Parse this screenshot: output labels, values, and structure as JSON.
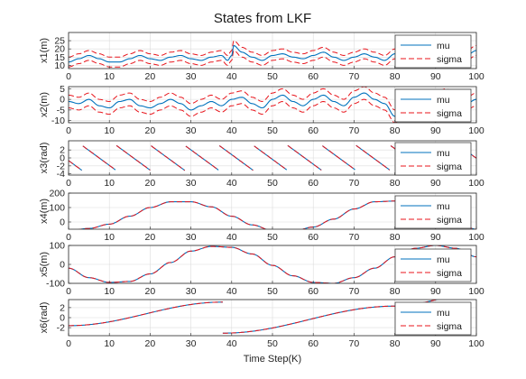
{
  "title": "States from LKF",
  "colors": {
    "mu": "#0072bd",
    "sigma": "#e8141b"
  },
  "chart_data": [
    {
      "type": "line",
      "ylabel": "x1(m)",
      "xlim": [
        0,
        100
      ],
      "ylim": [
        8,
        30
      ],
      "yticks": [
        10,
        15,
        20,
        25
      ],
      "xticks": [
        0,
        10,
        20,
        30,
        40,
        50,
        60,
        70,
        80,
        90,
        100
      ],
      "grid": true,
      "legend_position": "right",
      "series": [
        {
          "name": "mu"
        },
        {
          "name": "sigma"
        }
      ],
      "x": [
        0,
        2.5,
        5,
        7.5,
        10,
        12.5,
        15,
        17.5,
        20,
        22.5,
        25,
        27.5,
        30,
        32.5,
        35,
        37.5,
        39,
        40,
        40.5,
        42.5,
        45,
        47.5,
        50,
        52.5,
        55,
        57.5,
        60,
        62.5,
        65,
        67.5,
        70,
        72.5,
        75,
        77.5,
        80,
        82.5,
        85,
        87.5,
        90,
        92.5,
        95,
        97.5,
        100
      ],
      "mu": [
        12,
        14,
        16,
        14,
        12,
        12,
        14,
        16,
        14,
        13,
        15,
        16,
        14,
        13,
        15,
        16,
        13,
        16,
        22,
        18,
        15,
        13,
        16,
        17,
        15,
        14,
        16,
        18,
        15,
        13,
        15,
        17,
        15,
        13,
        17,
        16,
        14,
        13,
        16,
        19,
        17,
        16,
        19
      ],
      "sigma_band": 3
    },
    {
      "type": "line",
      "ylabel": "x2(m)",
      "xlim": [
        0,
        100
      ],
      "ylim": [
        -11,
        6
      ],
      "yticks": [
        -10,
        -5,
        0,
        5
      ],
      "xticks": [
        0,
        10,
        20,
        30,
        40,
        50,
        60,
        70,
        80,
        90,
        100
      ],
      "grid": true,
      "legend_position": "right",
      "series": [
        {
          "name": "mu"
        },
        {
          "name": "sigma"
        }
      ],
      "x": [
        0,
        2.5,
        5,
        7.5,
        10,
        12.5,
        15,
        17.5,
        20,
        22.5,
        25,
        27.5,
        30,
        32.5,
        35,
        37.5,
        40,
        42.5,
        45,
        47.5,
        50,
        52.5,
        55,
        57.5,
        60,
        62.5,
        65,
        67.5,
        70,
        72.5,
        75,
        77.5,
        80,
        82.5,
        85,
        87.5,
        90,
        92.5,
        95,
        97.5,
        100
      ],
      "mu": [
        -1,
        -2,
        0,
        -3,
        -4,
        -1,
        0,
        -3,
        -4,
        -2,
        0,
        -2,
        -5,
        -3,
        -1,
        -3,
        0,
        1,
        -2,
        -4,
        0,
        2,
        -1,
        -3,
        0,
        2,
        -1,
        -3,
        1,
        3,
        0,
        -2,
        -8,
        -4,
        -1,
        -3,
        0,
        2,
        -1,
        -2,
        0
      ],
      "sigma_band": 3
    },
    {
      "type": "line",
      "ylabel": "x3(rad)",
      "xlim": [
        0,
        100
      ],
      "ylim": [
        -4.3,
        4.3
      ],
      "yticks": [
        -4,
        -2,
        0,
        2
      ],
      "xticks": [
        0,
        10,
        20,
        30,
        40,
        50,
        60,
        70,
        80,
        90,
        100
      ],
      "grid": true,
      "legend_position": "right",
      "series": [
        {
          "name": "mu"
        },
        {
          "name": "sigma"
        }
      ],
      "sawtooth_period": 8.4,
      "sawtooth_start": 3.3,
      "max": 3.14,
      "min": -3.14
    },
    {
      "type": "line",
      "ylabel": "x4(m)",
      "xlim": [
        0,
        100
      ],
      "ylim": [
        -50,
        200
      ],
      "yticks": [
        0,
        100,
        200
      ],
      "xticks": [
        0,
        10,
        20,
        30,
        40,
        50,
        60,
        70,
        80,
        90,
        100
      ],
      "grid": true,
      "legend_position": "right",
      "series": [
        {
          "name": "mu"
        },
        {
          "name": "sigma"
        }
      ],
      "x": [
        0,
        5,
        10,
        15,
        20,
        25,
        30,
        35,
        40,
        45,
        50,
        55,
        60,
        65,
        70,
        75,
        80,
        85,
        90,
        95,
        100
      ],
      "mu": [
        -60,
        -45,
        -15,
        40,
        100,
        140,
        140,
        105,
        40,
        -20,
        -60,
        -65,
        -35,
        20,
        90,
        140,
        145,
        100,
        40,
        -5,
        -50
      ]
    },
    {
      "type": "line",
      "ylabel": "x5(m)",
      "xlim": [
        0,
        100
      ],
      "ylim": [
        -100,
        100
      ],
      "yticks": [
        -100,
        0,
        100
      ],
      "xticks": [
        0,
        10,
        20,
        30,
        40,
        50,
        60,
        70,
        80,
        90,
        100
      ],
      "grid": true,
      "legend_position": "right",
      "series": [
        {
          "name": "mu"
        },
        {
          "name": "sigma"
        }
      ],
      "x": [
        0,
        5,
        10,
        15,
        20,
        25,
        30,
        35,
        40,
        45,
        50,
        55,
        60,
        65,
        70,
        75,
        80,
        85,
        90,
        95,
        100
      ],
      "mu": [
        -20,
        -70,
        -95,
        -90,
        -50,
        10,
        70,
        95,
        90,
        55,
        -5,
        -60,
        -95,
        -100,
        -70,
        -20,
        40,
        85,
        100,
        85,
        40
      ]
    },
    {
      "type": "line",
      "ylabel": "x6(rad)",
      "xlim": [
        0,
        100
      ],
      "ylim": [
        -3.6,
        3.6
      ],
      "yticks": [
        -2,
        0,
        2
      ],
      "xticks": [
        0,
        10,
        20,
        30,
        40,
        50,
        60,
        70,
        80,
        90,
        100
      ],
      "grid": true,
      "legend_position": "right",
      "series": [
        {
          "name": "mu"
        },
        {
          "name": "sigma"
        }
      ],
      "x": [
        0,
        37.8,
        37.8,
        80,
        100
      ],
      "mu": [
        -1.6,
        3.1,
        -3.1,
        2.3,
        4.8
      ]
    }
  ],
  "x_axis_label": "Time Step(K)"
}
